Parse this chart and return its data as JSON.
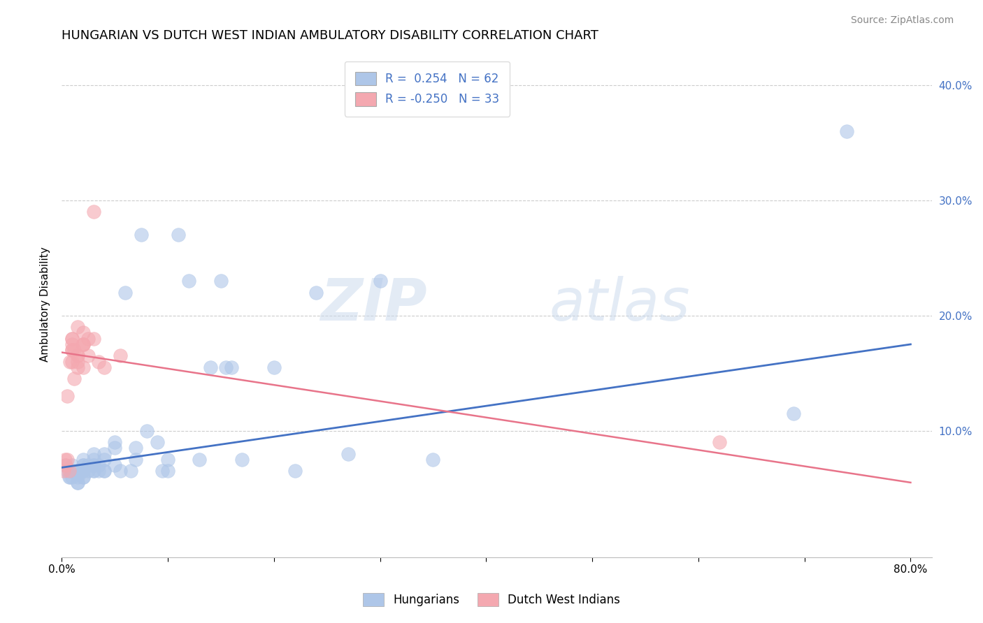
{
  "title": "HUNGARIAN VS DUTCH WEST INDIAN AMBULATORY DISABILITY CORRELATION CHART",
  "source": "Source: ZipAtlas.com",
  "ylabel": "Ambulatory Disability",
  "watermark_zip": "ZIP",
  "watermark_atlas": "atlas",
  "xlim": [
    0.0,
    0.82
  ],
  "ylim": [
    -0.01,
    0.43
  ],
  "blue_color": "#aec6e8",
  "pink_color": "#f4a8b0",
  "blue_line_color": "#4472c4",
  "pink_line_color": "#e8748a",
  "grid_color": "#cccccc",
  "background_color": "#ffffff",
  "legend_text_color": "#4472c4",
  "right_tick_color": "#4472c4",
  "hungarian_scatter_x": [
    0.003,
    0.005,
    0.007,
    0.008,
    0.01,
    0.01,
    0.01,
    0.015,
    0.015,
    0.015,
    0.015,
    0.02,
    0.02,
    0.02,
    0.02,
    0.02,
    0.02,
    0.02,
    0.025,
    0.025,
    0.03,
    0.03,
    0.03,
    0.03,
    0.03,
    0.03,
    0.035,
    0.035,
    0.04,
    0.04,
    0.04,
    0.04,
    0.05,
    0.05,
    0.05,
    0.055,
    0.06,
    0.065,
    0.07,
    0.07,
    0.075,
    0.08,
    0.09,
    0.095,
    0.1,
    0.1,
    0.11,
    0.12,
    0.13,
    0.14,
    0.15,
    0.155,
    0.16,
    0.17,
    0.2,
    0.22,
    0.24,
    0.27,
    0.3,
    0.35,
    0.69,
    0.74
  ],
  "hungarian_scatter_y": [
    0.07,
    0.065,
    0.06,
    0.06,
    0.07,
    0.065,
    0.06,
    0.065,
    0.06,
    0.055,
    0.055,
    0.075,
    0.07,
    0.07,
    0.065,
    0.065,
    0.06,
    0.06,
    0.065,
    0.07,
    0.08,
    0.065,
    0.065,
    0.07,
    0.075,
    0.07,
    0.07,
    0.065,
    0.08,
    0.065,
    0.065,
    0.075,
    0.09,
    0.085,
    0.07,
    0.065,
    0.22,
    0.065,
    0.085,
    0.075,
    0.27,
    0.1,
    0.09,
    0.065,
    0.075,
    0.065,
    0.27,
    0.23,
    0.075,
    0.155,
    0.23,
    0.155,
    0.155,
    0.075,
    0.155,
    0.065,
    0.22,
    0.08,
    0.23,
    0.075,
    0.115,
    0.36
  ],
  "dutch_scatter_x": [
    0.002,
    0.003,
    0.004,
    0.005,
    0.005,
    0.007,
    0.008,
    0.01,
    0.01,
    0.01,
    0.01,
    0.01,
    0.01,
    0.012,
    0.012,
    0.015,
    0.015,
    0.015,
    0.015,
    0.015,
    0.02,
    0.02,
    0.02,
    0.02,
    0.02,
    0.025,
    0.025,
    0.03,
    0.03,
    0.035,
    0.04,
    0.055,
    0.62
  ],
  "dutch_scatter_y": [
    0.065,
    0.075,
    0.07,
    0.075,
    0.13,
    0.065,
    0.16,
    0.16,
    0.17,
    0.17,
    0.175,
    0.18,
    0.18,
    0.17,
    0.145,
    0.165,
    0.155,
    0.165,
    0.19,
    0.16,
    0.185,
    0.175,
    0.175,
    0.175,
    0.155,
    0.165,
    0.18,
    0.29,
    0.18,
    0.16,
    0.155,
    0.165,
    0.09
  ],
  "blue_line_x": [
    0.0,
    0.8
  ],
  "blue_line_y": [
    0.068,
    0.175
  ],
  "pink_line_x": [
    0.0,
    0.8
  ],
  "pink_line_y": [
    0.168,
    0.055
  ],
  "legend_r1": "R =  0.254   N = 62",
  "legend_r2": "R = -0.250   N = 33"
}
